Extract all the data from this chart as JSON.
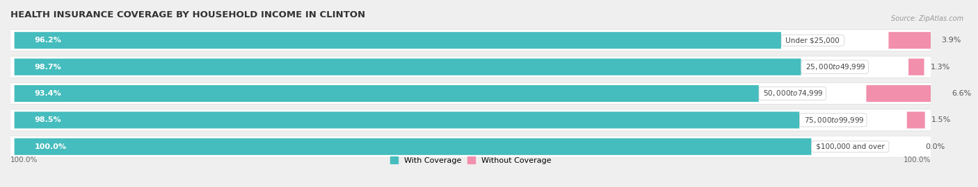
{
  "title": "HEALTH INSURANCE COVERAGE BY HOUSEHOLD INCOME IN CLINTON",
  "source": "Source: ZipAtlas.com",
  "categories": [
    "Under $25,000",
    "$25,000 to $49,999",
    "$50,000 to $74,999",
    "$75,000 to $99,999",
    "$100,000 and over"
  ],
  "with_coverage": [
    96.2,
    98.7,
    93.4,
    98.5,
    100.0
  ],
  "without_coverage": [
    3.9,
    1.3,
    6.6,
    1.5,
    0.0
  ],
  "color_with": "#45BCBD",
  "color_without": "#F28FAD",
  "bar_height": 0.62,
  "background_color": "#efefef",
  "row_bg_color": "#ffffff",
  "legend_with": "With Coverage",
  "legend_without": "Without Coverage",
  "title_fontsize": 9.5,
  "label_fontsize": 8.0,
  "tick_fontsize": 7.5,
  "max_val": 115.0,
  "scale": 100.0,
  "axis_label_left": "100.0%",
  "axis_label_right": "100.0%"
}
